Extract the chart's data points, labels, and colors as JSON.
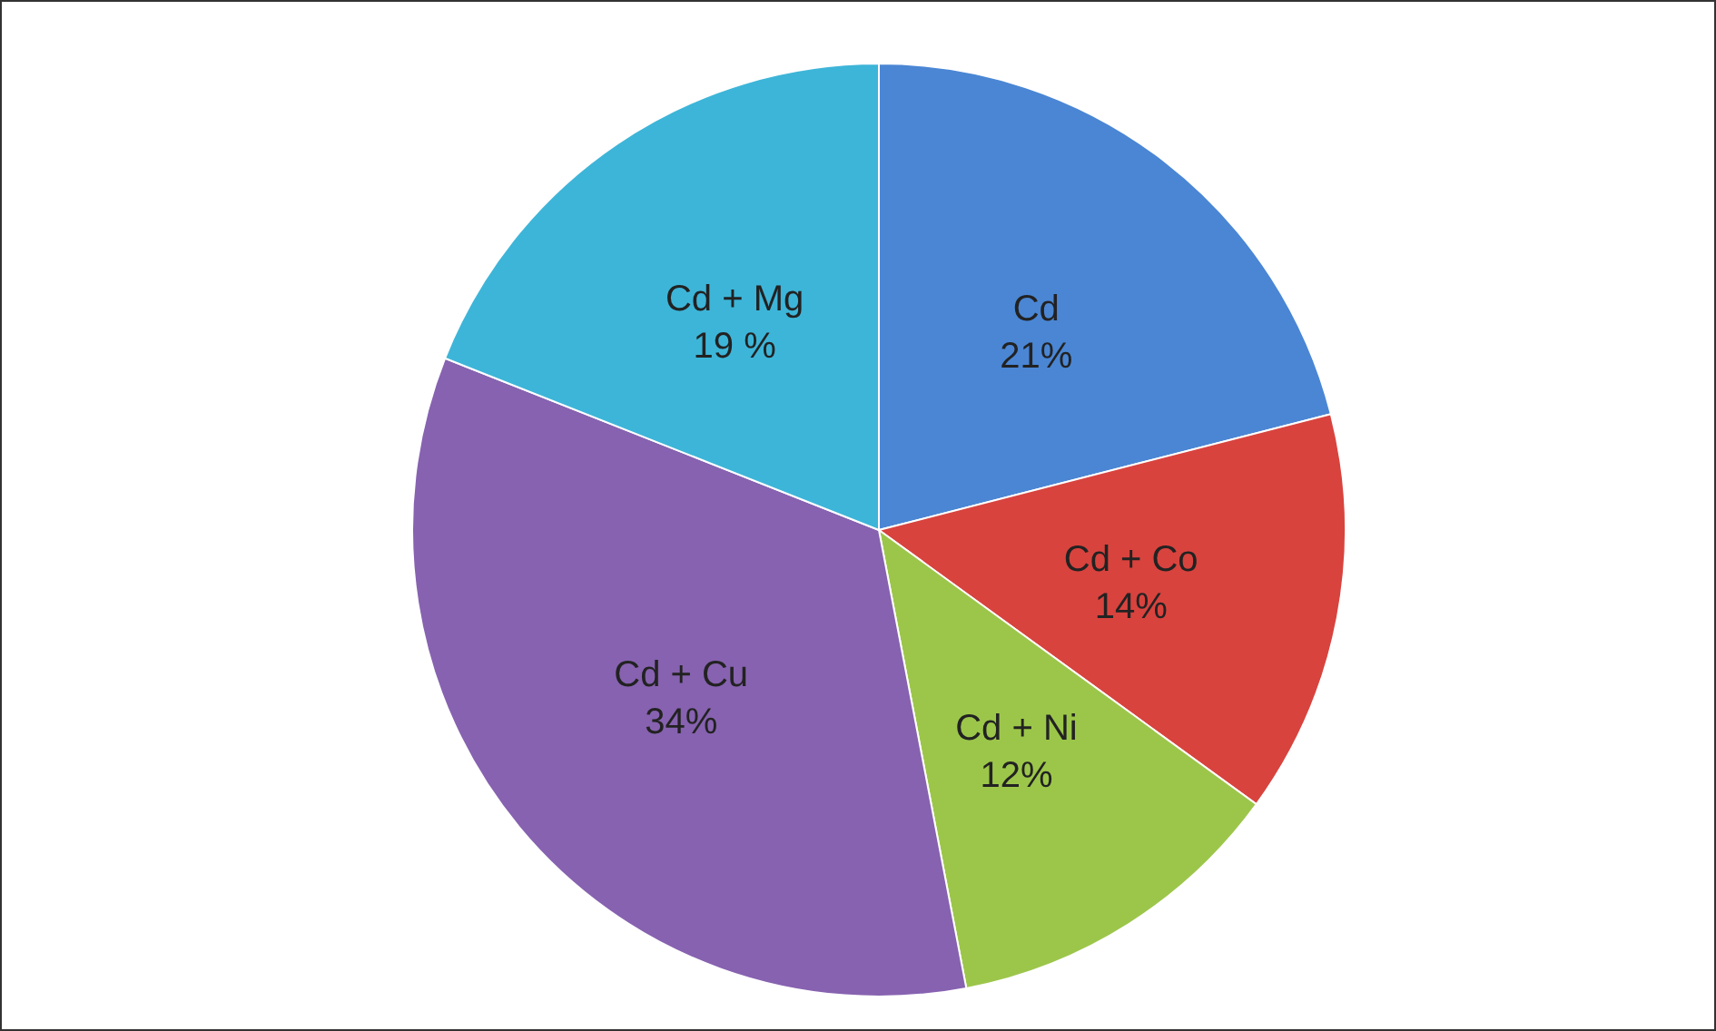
{
  "chart_data": {
    "type": "pie",
    "categories": [
      "Cd",
      "Cd + Co",
      "Cd + Ni",
      "Cd + Cu",
      "Cd + Mg"
    ],
    "values": [
      21,
      14,
      12,
      34,
      19
    ],
    "value_labels": [
      "21%",
      "14%",
      "12%",
      "34%",
      "19 %"
    ],
    "colors": [
      "#4a86d4",
      "#d8433e",
      "#9cc64a",
      "#8762b0",
      "#3db5d8"
    ]
  }
}
